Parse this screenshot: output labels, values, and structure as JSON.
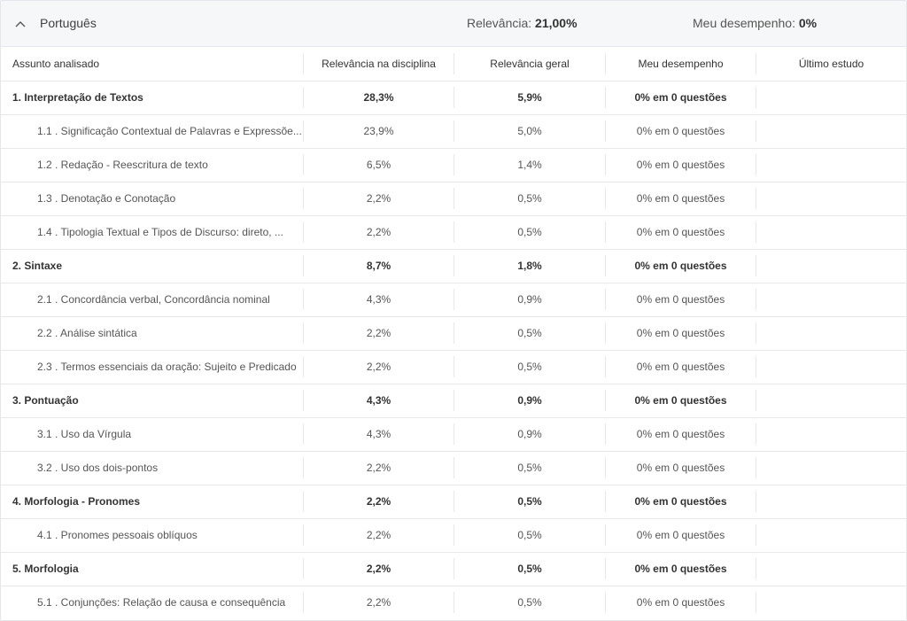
{
  "header": {
    "subject": "Português",
    "relevance_label": "Relevância:",
    "relevance_value": "21,00%",
    "performance_label": "Meu desempenho:",
    "performance_value": "0%",
    "icon": "chevron-up-icon"
  },
  "columns": [
    "Assunto analisado",
    "Relevância na disciplina",
    "Relevância geral",
    "Meu desempenho",
    "Último estudo"
  ],
  "rows": [
    {
      "level": "topic",
      "name": "1. Interpretação de Textos",
      "rel_disc": "28,3%",
      "rel_geral": "5,9%",
      "perf": "0% em 0 questões",
      "last": ""
    },
    {
      "level": "sub",
      "name": "1.1 . Significação Contextual de Palavras e Expressõe...",
      "rel_disc": "23,9%",
      "rel_geral": "5,0%",
      "perf": "0% em 0 questões",
      "last": ""
    },
    {
      "level": "sub",
      "name": "1.2 . Redação - Reescritura de texto",
      "rel_disc": "6,5%",
      "rel_geral": "1,4%",
      "perf": "0% em 0 questões",
      "last": ""
    },
    {
      "level": "sub",
      "name": "1.3 . Denotação e Conotação",
      "rel_disc": "2,2%",
      "rel_geral": "0,5%",
      "perf": "0% em 0 questões",
      "last": ""
    },
    {
      "level": "sub",
      "name": "1.4 . Tipologia Textual e Tipos de Discurso: direto, ...",
      "rel_disc": "2,2%",
      "rel_geral": "0,5%",
      "perf": "0% em 0 questões",
      "last": ""
    },
    {
      "level": "topic",
      "name": "2. Sintaxe",
      "rel_disc": "8,7%",
      "rel_geral": "1,8%",
      "perf": "0% em 0 questões",
      "last": ""
    },
    {
      "level": "sub",
      "name": "2.1 . Concordância verbal, Concordância nominal",
      "rel_disc": "4,3%",
      "rel_geral": "0,9%",
      "perf": "0% em 0 questões",
      "last": ""
    },
    {
      "level": "sub",
      "name": "2.2 . Análise sintática",
      "rel_disc": "2,2%",
      "rel_geral": "0,5%",
      "perf": "0% em 0 questões",
      "last": ""
    },
    {
      "level": "sub",
      "name": "2.3 . Termos essenciais da oração: Sujeito e Predicado",
      "rel_disc": "2,2%",
      "rel_geral": "0,5%",
      "perf": "0% em 0 questões",
      "last": ""
    },
    {
      "level": "topic",
      "name": "3. Pontuação",
      "rel_disc": "4,3%",
      "rel_geral": "0,9%",
      "perf": "0% em 0 questões",
      "last": ""
    },
    {
      "level": "sub",
      "name": "3.1 . Uso da Vírgula",
      "rel_disc": "4,3%",
      "rel_geral": "0,9%",
      "perf": "0% em 0 questões",
      "last": ""
    },
    {
      "level": "sub",
      "name": "3.2 . Uso dos dois-pontos",
      "rel_disc": "2,2%",
      "rel_geral": "0,5%",
      "perf": "0% em 0 questões",
      "last": ""
    },
    {
      "level": "topic",
      "name": "4. Morfologia - Pronomes",
      "rel_disc": "2,2%",
      "rel_geral": "0,5%",
      "perf": "0% em 0 questões",
      "last": ""
    },
    {
      "level": "sub",
      "name": "4.1 . Pronomes pessoais oblíquos",
      "rel_disc": "2,2%",
      "rel_geral": "0,5%",
      "perf": "0% em 0 questões",
      "last": ""
    },
    {
      "level": "topic",
      "name": "5. Morfologia",
      "rel_disc": "2,2%",
      "rel_geral": "0,5%",
      "perf": "0% em 0 questões",
      "last": ""
    },
    {
      "level": "sub",
      "name": "5.1 . Conjunções: Relação de causa e consequência",
      "rel_disc": "2,2%",
      "rel_geral": "0,5%",
      "perf": "0% em 0 questões",
      "last": ""
    }
  ]
}
